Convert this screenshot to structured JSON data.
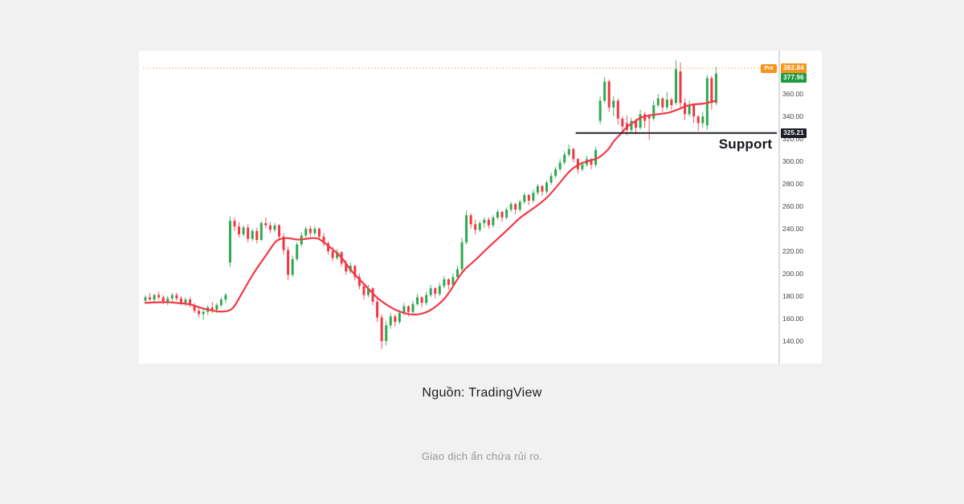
{
  "page": {
    "background": "#f1f1f2"
  },
  "captions": {
    "source": "Nguồn: TradingView",
    "disclaimer": "Giao dịch ẩn chứa rủi ro."
  },
  "chart_data": {
    "type": "candlestick",
    "title": "",
    "annotation": "Support",
    "ylim": [
      120,
      398.6
    ],
    "y_axis": {
      "ticks": [
        360,
        340,
        320,
        300,
        280,
        260,
        240,
        220,
        200,
        180,
        160,
        140
      ],
      "grid": false,
      "position": "right"
    },
    "premarket_price": 382.84,
    "last_close": 377.96,
    "support_level": 325.21,
    "price_labels": {
      "premarket": {
        "badge": "Pre",
        "value": "382.84",
        "color": "#f7941e"
      },
      "last": {
        "value": "377.96",
        "color": "#1e9b40"
      },
      "support": {
        "value": "325.21",
        "color": "#1d1f24"
      }
    },
    "colors": {
      "up": "#2fa84f",
      "down": "#f23645",
      "ma": "#f43846",
      "pre_line": "#f7a13c",
      "support_line": "#23262f",
      "axis_line": "#b6bac3",
      "tick_text": "#40434b"
    },
    "candles": [
      [
        176,
        181,
        174,
        179
      ],
      [
        179,
        183,
        176,
        177
      ],
      [
        177,
        182,
        175,
        181
      ],
      [
        181,
        184,
        177,
        179
      ],
      [
        179,
        181,
        173,
        175
      ],
      [
        175,
        180,
        172,
        178
      ],
      [
        178,
        183,
        175,
        181
      ],
      [
        181,
        183,
        176,
        178
      ],
      [
        178,
        180,
        172,
        174
      ],
      [
        174,
        179,
        171,
        177
      ],
      [
        177,
        179,
        170,
        172
      ],
      [
        172,
        174,
        165,
        167
      ],
      [
        167,
        171,
        161,
        164
      ],
      [
        164,
        169,
        159,
        166
      ],
      [
        166,
        172,
        163,
        170
      ],
      [
        170,
        175,
        165,
        168
      ],
      [
        168,
        174,
        165,
        172
      ],
      [
        172,
        179,
        170,
        177
      ],
      [
        177,
        183,
        174,
        181
      ],
      [
        210,
        251,
        206,
        247
      ],
      [
        247,
        250,
        238,
        242
      ],
      [
        242,
        246,
        232,
        235
      ],
      [
        235,
        243,
        233,
        241
      ],
      [
        241,
        244,
        228,
        231
      ],
      [
        231,
        240,
        229,
        238
      ],
      [
        238,
        241,
        227,
        230
      ],
      [
        230,
        247,
        229,
        245
      ],
      [
        245,
        250,
        240,
        243
      ],
      [
        243,
        246,
        236,
        239
      ],
      [
        239,
        245,
        237,
        243
      ],
      [
        243,
        244,
        229,
        233
      ],
      [
        233,
        236,
        217,
        221
      ],
      [
        221,
        224,
        194,
        199
      ],
      [
        199,
        216,
        197,
        213
      ],
      [
        213,
        228,
        211,
        226
      ],
      [
        226,
        237,
        224,
        234
      ],
      [
        234,
        242,
        232,
        240
      ],
      [
        240,
        243,
        233,
        236
      ],
      [
        236,
        242,
        234,
        240
      ],
      [
        240,
        241,
        230,
        233
      ],
      [
        233,
        236,
        224,
        227
      ],
      [
        227,
        229,
        217,
        220
      ],
      [
        220,
        224,
        211,
        214
      ],
      [
        214,
        222,
        212,
        219
      ],
      [
        219,
        220,
        206,
        209
      ],
      [
        209,
        212,
        199,
        202
      ],
      [
        202,
        210,
        200,
        207
      ],
      [
        207,
        208,
        194,
        197
      ],
      [
        197,
        200,
        186,
        189
      ],
      [
        189,
        192,
        177,
        181
      ],
      [
        181,
        190,
        179,
        187
      ],
      [
        187,
        188,
        172,
        175
      ],
      [
        175,
        178,
        157,
        161
      ],
      [
        161,
        164,
        133,
        140
      ],
      [
        140,
        158,
        136,
        154
      ],
      [
        154,
        165,
        151,
        162
      ],
      [
        162,
        164,
        153,
        157
      ],
      [
        157,
        168,
        155,
        165
      ],
      [
        165,
        174,
        163,
        171
      ],
      [
        171,
        172,
        162,
        166
      ],
      [
        166,
        176,
        164,
        173
      ],
      [
        173,
        182,
        171,
        179
      ],
      [
        179,
        180,
        170,
        174
      ],
      [
        174,
        184,
        172,
        181
      ],
      [
        181,
        190,
        179,
        187
      ],
      [
        187,
        188,
        178,
        182
      ],
      [
        182,
        192,
        180,
        189
      ],
      [
        189,
        198,
        187,
        195
      ],
      [
        195,
        196,
        186,
        190
      ],
      [
        190,
        200,
        188,
        197
      ],
      [
        197,
        207,
        195,
        204
      ],
      [
        204,
        232,
        202,
        228
      ],
      [
        228,
        256,
        226,
        252
      ],
      [
        252,
        254,
        240,
        244
      ],
      [
        244,
        248,
        235,
        239
      ],
      [
        239,
        247,
        237,
        245
      ],
      [
        245,
        250,
        241,
        248
      ],
      [
        248,
        250,
        240,
        243
      ],
      [
        243,
        252,
        241,
        250
      ],
      [
        250,
        257,
        248,
        255
      ],
      [
        255,
        256,
        246,
        250
      ],
      [
        250,
        259,
        248,
        257
      ],
      [
        257,
        264,
        255,
        262
      ],
      [
        262,
        263,
        253,
        257
      ],
      [
        257,
        266,
        255,
        264
      ],
      [
        264,
        272,
        262,
        270
      ],
      [
        270,
        271,
        261,
        265
      ],
      [
        265,
        275,
        263,
        272
      ],
      [
        272,
        280,
        270,
        278
      ],
      [
        278,
        279,
        269,
        273
      ],
      [
        273,
        283,
        271,
        281
      ],
      [
        281,
        290,
        279,
        287
      ],
      [
        287,
        295,
        285,
        293
      ],
      [
        293,
        302,
        291,
        299
      ],
      [
        299,
        309,
        297,
        306
      ],
      [
        306,
        315,
        304,
        311
      ],
      [
        311,
        312,
        299,
        302
      ],
      [
        302,
        303,
        289,
        293
      ],
      [
        293,
        300,
        291,
        297
      ],
      [
        297,
        305,
        295,
        302
      ],
      [
        302,
        303,
        293,
        297
      ],
      [
        297,
        313,
        295,
        310
      ],
      [
        336,
        358,
        333,
        354
      ],
      [
        354,
        375,
        352,
        371
      ],
      [
        371,
        373,
        344,
        348
      ],
      [
        348,
        358,
        340,
        354
      ],
      [
        354,
        356,
        333,
        338
      ],
      [
        338,
        340,
        326,
        331
      ],
      [
        334,
        341,
        323,
        328
      ],
      [
        328,
        339,
        326,
        336
      ],
      [
        336,
        338,
        324,
        330
      ],
      [
        330,
        346,
        328,
        342
      ],
      [
        342,
        344,
        330,
        336
      ],
      [
        340,
        342,
        319,
        338
      ],
      [
        338,
        354,
        336,
        350
      ],
      [
        350,
        360,
        348,
        356
      ],
      [
        356,
        357,
        344,
        348
      ],
      [
        348,
        362,
        346,
        355
      ],
      [
        355,
        357,
        346,
        350
      ],
      [
        352,
        390,
        350,
        382
      ],
      [
        380,
        388,
        348,
        352
      ],
      [
        352,
        356,
        337,
        342
      ],
      [
        342,
        354,
        340,
        350
      ],
      [
        350,
        351,
        334,
        340
      ],
      [
        340,
        341,
        327,
        334
      ],
      [
        334,
        344,
        330,
        340
      ],
      [
        332,
        377,
        328,
        374
      ],
      [
        374,
        376,
        346,
        352
      ],
      [
        352,
        384,
        350,
        378
      ]
    ],
    "ma_line": {
      "name": "moving-average",
      "points": [
        [
          0,
          174
        ],
        [
          4,
          175
        ],
        [
          7,
          174
        ],
        [
          10,
          173
        ],
        [
          12,
          170
        ],
        [
          15,
          167
        ],
        [
          17,
          166
        ],
        [
          19,
          167
        ],
        [
          20,
          171
        ],
        [
          21,
          178
        ],
        [
          23,
          192
        ],
        [
          25,
          205
        ],
        [
          27,
          216
        ],
        [
          29,
          228
        ],
        [
          30,
          231
        ],
        [
          32,
          232
        ],
        [
          34,
          230
        ],
        [
          36,
          231
        ],
        [
          38,
          232
        ],
        [
          39,
          231
        ],
        [
          41,
          225
        ],
        [
          44,
          215
        ],
        [
          46,
          203
        ],
        [
          49,
          191
        ],
        [
          52,
          178
        ],
        [
          55,
          170
        ],
        [
          57,
          166
        ],
        [
          60,
          163
        ],
        [
          63,
          165
        ],
        [
          66,
          173
        ],
        [
          68,
          182
        ],
        [
          71,
          202
        ],
        [
          74,
          212
        ],
        [
          76,
          220
        ],
        [
          79,
          231
        ],
        [
          82,
          242
        ],
        [
          84,
          250
        ],
        [
          87,
          258
        ],
        [
          90,
          267
        ],
        [
          93,
          281
        ],
        [
          95,
          291
        ],
        [
          97,
          297
        ],
        [
          99,
          300
        ],
        [
          101,
          302
        ],
        [
          102,
          304
        ],
        [
          104,
          311
        ],
        [
          105,
          318
        ],
        [
          107,
          326
        ],
        [
          108,
          331
        ],
        [
          110,
          336
        ],
        [
          111,
          339
        ],
        [
          113,
          341
        ],
        [
          115,
          342
        ],
        [
          117,
          343
        ],
        [
          118,
          344
        ],
        [
          120,
          347
        ],
        [
          121,
          349
        ],
        [
          123,
          351
        ],
        [
          125,
          351
        ],
        [
          127,
          353
        ],
        [
          128,
          354
        ]
      ]
    },
    "support_line": {
      "start_index": 96.5,
      "extends_to_axis": true
    }
  }
}
